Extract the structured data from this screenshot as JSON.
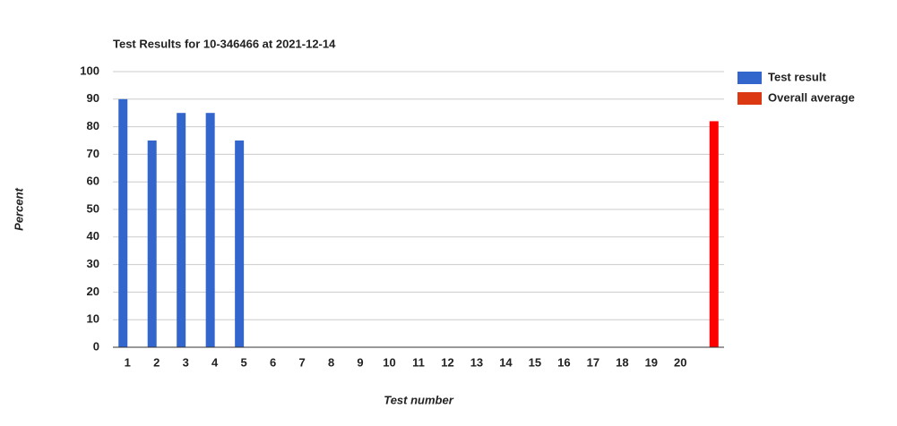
{
  "chart_data": {
    "type": "bar",
    "title": "Test Results for 10-346466 at 2021-12-14",
    "x_label": "Test number",
    "y_label": "Percent",
    "categories": [
      "1",
      "2",
      "3",
      "4",
      "5",
      "6",
      "7",
      "8",
      "9",
      "10",
      "11",
      "12",
      "13",
      "14",
      "15",
      "16",
      "17",
      "18",
      "19",
      "20",
      null
    ],
    "series": [
      {
        "name": "Test result",
        "color": "#3366cc",
        "values": [
          90,
          75,
          85,
          85,
          75,
          0,
          0,
          0,
          0,
          0,
          0,
          0,
          0,
          0,
          0,
          0,
          0,
          0,
          0,
          0,
          null
        ]
      },
      {
        "name": "Overall average",
        "color": "#dc3912",
        "bar_color": "#ff0000",
        "values": [
          null,
          null,
          null,
          null,
          null,
          null,
          null,
          null,
          null,
          null,
          null,
          null,
          null,
          null,
          null,
          null,
          null,
          null,
          null,
          null,
          82
        ]
      }
    ],
    "ylim": [
      0,
      100
    ],
    "yticks": [
      0,
      10,
      20,
      30,
      40,
      50,
      60,
      70,
      80,
      90,
      100
    ],
    "grid": true,
    "legend": "right"
  }
}
